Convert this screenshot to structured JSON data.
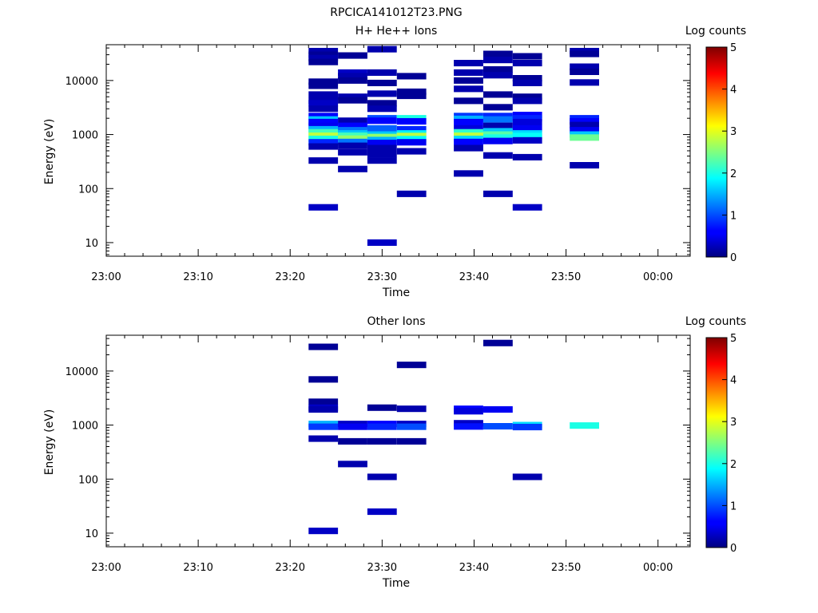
{
  "figure_title": "RPCICA141012T23.PNG",
  "colorbar": {
    "title": "Log counts",
    "min": 0,
    "max": 5,
    "ticks": [
      "0",
      "1",
      "2",
      "3",
      "4",
      "5"
    ]
  },
  "chart_data": [
    {
      "type": "heatmap",
      "title": "H+ He++ Ions",
      "xlabel": "Time",
      "ylabel": "Energy (eV)",
      "x_ticks": [
        "23:00",
        "23:10",
        "23:20",
        "23:30",
        "23:40",
        "23:50",
        "00:00"
      ],
      "x_range_minutes": [
        0,
        63.5
      ],
      "y_scale": "log",
      "ylim": [
        5.6,
        46000
      ],
      "y_ticks": [
        "10",
        "100",
        "1000",
        "10000"
      ],
      "columns": [
        {
          "t0": 22.0,
          "t1": 25.2,
          "cells": [
            [
              35000,
              0.2
            ],
            [
              30000,
              0.1
            ],
            [
              26000,
              0.2
            ],
            [
              22000,
              0.1
            ],
            [
              9500,
              0.1
            ],
            [
              8000,
              0.1
            ],
            [
              5500,
              0.2
            ],
            [
              4200,
              0.2
            ],
            [
              3800,
              0.3
            ],
            [
              3000,
              0.2
            ],
            [
              2200,
              0.6
            ],
            [
              1900,
              1.6
            ],
            [
              1700,
              0.6
            ],
            [
              1450,
              0.5
            ],
            [
              1250,
              1.5
            ],
            [
              1100,
              2.2
            ],
            [
              950,
              2.8
            ],
            [
              830,
              2.0
            ],
            [
              720,
              0.8
            ],
            [
              600,
              0.2
            ],
            [
              330,
              0.2
            ],
            [
              45,
              0.3
            ]
          ]
        },
        {
          "t0": 25.2,
          "t1": 28.4,
          "cells": [
            [
              29000,
              0.1
            ],
            [
              14000,
              0.3
            ],
            [
              12000,
              0.2
            ],
            [
              10000,
              0.1
            ],
            [
              5000,
              0.2
            ],
            [
              4300,
              0.1
            ],
            [
              1800,
              0.2
            ],
            [
              1450,
              0.6
            ],
            [
              1200,
              1.2
            ],
            [
              1050,
              1.6
            ],
            [
              950,
              2.2
            ],
            [
              840,
              2.6
            ],
            [
              730,
              1.2
            ],
            [
              620,
              0.2
            ],
            [
              470,
              0.2
            ],
            [
              230,
              0.2
            ]
          ]
        },
        {
          "t0": 28.4,
          "t1": 31.6,
          "cells": [
            [
              38000,
              0.2
            ],
            [
              14000,
              0.2
            ],
            [
              9000,
              0.1
            ],
            [
              5700,
              0.2
            ],
            [
              3800,
              0.1
            ],
            [
              3000,
              0.2
            ],
            [
              2000,
              1.0
            ],
            [
              1800,
              0.6
            ],
            [
              1300,
              1.1
            ],
            [
              1000,
              1.6
            ],
            [
              900,
              2.6
            ],
            [
              790,
              1.5
            ],
            [
              700,
              0.5
            ],
            [
              560,
              0.2
            ],
            [
              430,
              0.2
            ],
            [
              330,
              0.2
            ],
            [
              10,
              0.3
            ]
          ]
        },
        {
          "t0": 31.6,
          "t1": 34.8,
          "cells": [
            [
              12000,
              0.1
            ],
            [
              6200,
              0.1
            ],
            [
              5200,
              0.1
            ],
            [
              2000,
              2.0
            ],
            [
              1750,
              0.6
            ],
            [
              1250,
              0.8
            ],
            [
              1050,
              1.8
            ],
            [
              940,
              2.8
            ],
            [
              820,
              1.9
            ],
            [
              720,
              0.5
            ],
            [
              490,
              0.2
            ],
            [
              80,
              0.2
            ]
          ]
        },
        {
          "t0": 37.8,
          "t1": 41.0,
          "cells": [
            [
              21000,
              0.2
            ],
            [
              14000,
              0.2
            ],
            [
              10000,
              0.1
            ],
            [
              7000,
              0.2
            ],
            [
              4200,
              0.1
            ],
            [
              2200,
              0.9
            ],
            [
              1950,
              1.5
            ],
            [
              1700,
              0.6
            ],
            [
              1300,
              0.4
            ],
            [
              1100,
              2.1
            ],
            [
              950,
              2.8
            ],
            [
              830,
              1.7
            ],
            [
              730,
              0.6
            ],
            [
              560,
              0.2
            ],
            [
              190,
              0.2
            ]
          ]
        },
        {
          "t0": 41.0,
          "t1": 44.2,
          "cells": [
            [
              31000,
              0.1
            ],
            [
              24000,
              0.2
            ],
            [
              16000,
              0.1
            ],
            [
              12500,
              0.2
            ],
            [
              5500,
              0.1
            ],
            [
              3200,
              0.1
            ],
            [
              2200,
              0.8
            ],
            [
              1900,
              1.2
            ],
            [
              1450,
              0.2
            ],
            [
              1150,
              1.6
            ],
            [
              1000,
              2.3
            ],
            [
              880,
              2.0
            ],
            [
              760,
              0.5
            ],
            [
              410,
              0.2
            ],
            [
              80,
              0.2
            ]
          ]
        },
        {
          "t0": 44.2,
          "t1": 47.4,
          "cells": [
            [
              28000,
              0.1
            ],
            [
              21000,
              0.2
            ],
            [
              11000,
              0.1
            ],
            [
              9000,
              0.2
            ],
            [
              5000,
              0.1
            ],
            [
              4200,
              0.2
            ],
            [
              2300,
              0.6
            ],
            [
              2000,
              0.8
            ],
            [
              1700,
              0.4
            ],
            [
              1300,
              0.5
            ],
            [
              1050,
              1.7
            ],
            [
              940,
              1.9
            ],
            [
              780,
              0.3
            ],
            [
              380,
              0.2
            ],
            [
              45,
              0.3
            ]
          ]
        },
        {
          "t0": 50.4,
          "t1": 53.6,
          "cells": [
            [
              35000,
              0.2
            ],
            [
              31000,
              0.1
            ],
            [
              18000,
              0.2
            ],
            [
              14500,
              0.1
            ],
            [
              9200,
              0.2
            ],
            [
              2000,
              0.8
            ],
            [
              1750,
              0.6
            ],
            [
              1500,
              0.2
            ],
            [
              1200,
              0.5
            ],
            [
              1000,
              1.6
            ],
            [
              880,
              2.4
            ],
            [
              270,
              0.2
            ]
          ]
        }
      ]
    },
    {
      "type": "heatmap",
      "title": "Other Ions",
      "xlabel": "Time",
      "ylabel": "Energy (eV)",
      "x_ticks": [
        "23:00",
        "23:10",
        "23:20",
        "23:30",
        "23:40",
        "23:50",
        "00:00"
      ],
      "x_range_minutes": [
        0,
        63.5
      ],
      "y_scale": "log",
      "ylim": [
        5.6,
        46000
      ],
      "y_ticks": [
        "10",
        "100",
        "1000",
        "10000"
      ],
      "columns": [
        {
          "t0": 22.0,
          "t1": 25.2,
          "cells": [
            [
              28000,
              0.1
            ],
            [
              7000,
              0.1
            ],
            [
              2700,
              0.1
            ],
            [
              2100,
              0.3
            ],
            [
              1950,
              0.2
            ],
            [
              1050,
              1.5
            ],
            [
              930,
              0.9
            ],
            [
              560,
              0.2
            ],
            [
              11,
              0.3
            ]
          ]
        },
        {
          "t0": 25.2,
          "t1": 28.4,
          "cells": [
            [
              1050,
              0.3
            ],
            [
              930,
              0.5
            ],
            [
              500,
              0.1
            ],
            [
              190,
              0.2
            ]
          ]
        },
        {
          "t0": 28.4,
          "t1": 31.6,
          "cells": [
            [
              2100,
              0.1
            ],
            [
              1050,
              0.6
            ],
            [
              930,
              0.8
            ],
            [
              500,
              0.1
            ],
            [
              110,
              0.2
            ],
            [
              25,
              0.3
            ]
          ]
        },
        {
          "t0": 31.6,
          "t1": 34.8,
          "cells": [
            [
              13000,
              0.1
            ],
            [
              2000,
              0.2
            ],
            [
              1050,
              0.3
            ],
            [
              930,
              1.0
            ],
            [
              500,
              0.1
            ]
          ]
        },
        {
          "t0": 37.8,
          "t1": 41.0,
          "cells": [
            [
              2000,
              0.6
            ],
            [
              1800,
              0.4
            ],
            [
              1080,
              0.3
            ],
            [
              940,
              0.7
            ]
          ]
        },
        {
          "t0": 41.0,
          "t1": 44.2,
          "cells": [
            [
              33000,
              0.1
            ],
            [
              1950,
              0.5
            ],
            [
              950,
              1.0
            ]
          ]
        },
        {
          "t0": 44.2,
          "t1": 47.4,
          "cells": [
            [
              1000,
              1.7
            ],
            [
              920,
              0.9
            ],
            [
              110,
              0.2
            ]
          ]
        },
        {
          "t0": 50.4,
          "t1": 53.6,
          "cells": [
            [
              980,
              2.0
            ]
          ]
        }
      ]
    }
  ]
}
